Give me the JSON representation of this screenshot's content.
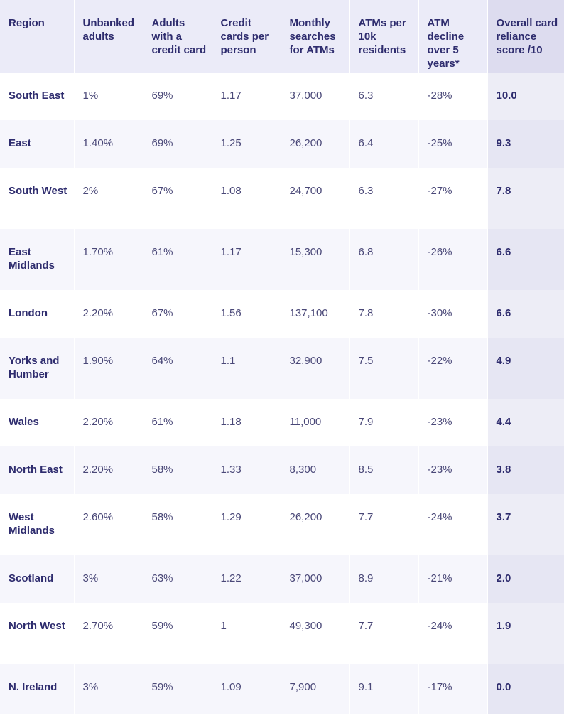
{
  "headers": [
    "Region",
    "Unbanked adults",
    "Adults with a credit card",
    "Credit cards per person",
    "Monthly searches for ATMs",
    "ATMs per 10k residents",
    "ATM decline over 5 years*",
    "Overall card reliance score /10"
  ],
  "rows": [
    {
      "region": "South East",
      "unbanked": "1%",
      "credit_adults": "69%",
      "cards_per_person": "1.17",
      "searches": "37,000",
      "atms": "6.3",
      "decline": "-28%",
      "score": "10.0"
    },
    {
      "region": "East",
      "unbanked": "1.40%",
      "credit_adults": "69%",
      "cards_per_person": "1.25",
      "searches": "26,200",
      "atms": "6.4",
      "decline": "-25%",
      "score": "9.3"
    },
    {
      "region": "South West",
      "unbanked": "2%",
      "credit_adults": "67%",
      "cards_per_person": "1.08",
      "searches": "24,700",
      "atms": "6.3",
      "decline": "-27%",
      "score": "7.8"
    },
    {
      "region": "East Midlands",
      "unbanked": "1.70%",
      "credit_adults": "61%",
      "cards_per_person": "1.17",
      "searches": "15,300",
      "atms": "6.8",
      "decline": "-26%",
      "score": "6.6"
    },
    {
      "region": "London",
      "unbanked": "2.20%",
      "credit_adults": "67%",
      "cards_per_person": "1.56",
      "searches": "137,100",
      "atms": "7.8",
      "decline": "-30%",
      "score": "6.6"
    },
    {
      "region": "Yorks and Humber",
      "unbanked": "1.90%",
      "credit_adults": "64%",
      "cards_per_person": "1.1",
      "searches": "32,900",
      "atms": "7.5",
      "decline": "-22%",
      "score": "4.9"
    },
    {
      "region": "Wales",
      "unbanked": "2.20%",
      "credit_adults": "61%",
      "cards_per_person": "1.18",
      "searches": "11,000",
      "atms": "7.9",
      "decline": "-23%",
      "score": "4.4"
    },
    {
      "region": "North East",
      "unbanked": "2.20%",
      "credit_adults": "58%",
      "cards_per_person": "1.33",
      "searches": "8,300",
      "atms": "8.5",
      "decline": "-23%",
      "score": "3.8"
    },
    {
      "region": "West Midlands",
      "unbanked": "2.60%",
      "credit_adults": "58%",
      "cards_per_person": "1.29",
      "searches": "26,200",
      "atms": "7.7",
      "decline": "-24%",
      "score": "3.7"
    },
    {
      "region": "Scotland",
      "unbanked": "3%",
      "credit_adults": "63%",
      "cards_per_person": "1.22",
      "searches": "37,000",
      "atms": "8.9",
      "decline": "-21%",
      "score": "2.0"
    },
    {
      "region": "North West",
      "unbanked": "2.70%",
      "credit_adults": "59%",
      "cards_per_person": "1",
      "searches": "49,300",
      "atms": "7.7",
      "decline": "-24%",
      "score": "1.9"
    },
    {
      "region": "N. Ireland",
      "unbanked": "3%",
      "credit_adults": "59%",
      "cards_per_person": "1.09",
      "searches": "7,900",
      "atms": "9.1",
      "decline": "-17%",
      "score": "0.0"
    }
  ]
}
